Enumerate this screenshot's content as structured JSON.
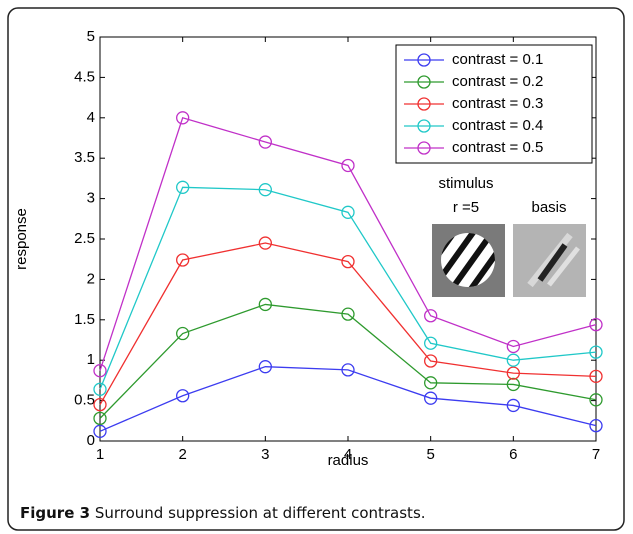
{
  "chart_data": {
    "type": "line",
    "x": [
      1,
      2,
      3,
      4,
      5,
      6,
      7
    ],
    "xlim": [
      1,
      7
    ],
    "xticks": [
      1,
      2,
      3,
      4,
      5,
      6,
      7
    ],
    "ylim": [
      0,
      5
    ],
    "yticks": [
      0,
      0.5,
      1,
      1.5,
      2,
      2.5,
      3,
      3.5,
      4,
      4.5,
      5
    ],
    "x_label": "radius",
    "y_label": "response",
    "legend": "upper right",
    "series": [
      {
        "name": "contrast = 0.1",
        "color": "#3c3cf0",
        "values": [
          0.12,
          0.56,
          0.92,
          0.88,
          0.53,
          0.44,
          0.19
        ]
      },
      {
        "name": "contrast = 0.2",
        "color": "#2e9a2e",
        "values": [
          0.28,
          1.33,
          1.69,
          1.57,
          0.72,
          0.7,
          0.51
        ]
      },
      {
        "name": "contrast = 0.3",
        "color": "#f03030",
        "values": [
          0.45,
          2.24,
          2.45,
          2.22,
          0.99,
          0.84,
          0.8
        ]
      },
      {
        "name": "contrast = 0.4",
        "color": "#20c8c8",
        "values": [
          0.64,
          3.14,
          3.11,
          2.83,
          1.21,
          1.0,
          1.1
        ]
      },
      {
        "name": "contrast = 0.5",
        "color": "#c030c8",
        "values": [
          0.87,
          4.0,
          3.7,
          3.41,
          1.55,
          1.17,
          1.44
        ]
      }
    ],
    "inset": {
      "stimulus_label": "stimulus",
      "radius_label": "r =5",
      "basis_label": "basis"
    }
  },
  "caption": {
    "label": "Figure 3",
    "text": "Surround suppression at different contrasts."
  }
}
